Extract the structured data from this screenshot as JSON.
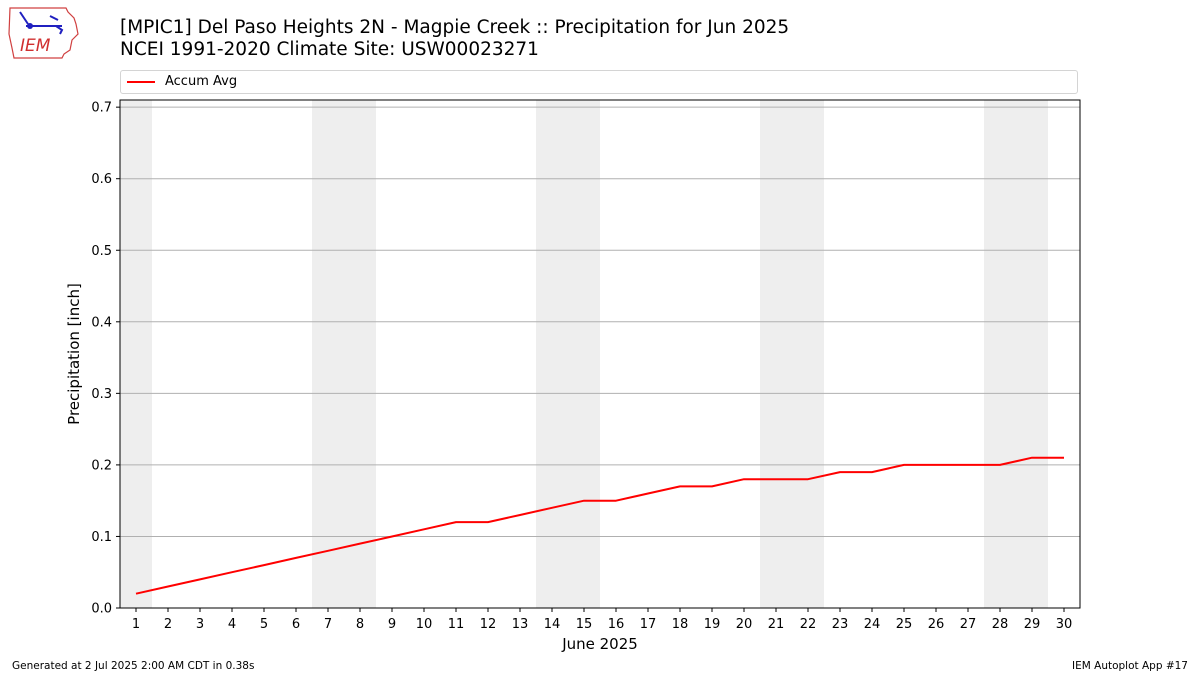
{
  "header": {
    "logo_text": "IEM",
    "title_line1": "[MPIC1] Del Paso Heights 2N - Magpie Creek :: Precipitation for Jun 2025",
    "title_line2": "NCEI 1991-2020 Climate Site: USW00023271"
  },
  "footer": {
    "generated": "Generated at 2 Jul 2025 2:00 AM CDT in 0.38s",
    "app": "IEM Autoplot App #17"
  },
  "chart_data": {
    "type": "line",
    "title": "[MPIC1] Del Paso Heights 2N - Magpie Creek :: Precipitation for Jun 2025",
    "subtitle": "NCEI 1991-2020 Climate Site: USW00023271",
    "xlabel": "June 2025",
    "ylabel": "Precipitation [inch]",
    "xlim": [
      0.5,
      30.5
    ],
    "ylim": [
      0,
      0.71
    ],
    "x": [
      1,
      2,
      3,
      4,
      5,
      6,
      7,
      8,
      9,
      10,
      11,
      12,
      13,
      14,
      15,
      16,
      17,
      18,
      19,
      20,
      21,
      22,
      23,
      24,
      25,
      26,
      27,
      28,
      29,
      30
    ],
    "x_ticks": [
      1,
      2,
      3,
      4,
      5,
      6,
      7,
      8,
      9,
      10,
      11,
      12,
      13,
      14,
      15,
      16,
      17,
      18,
      19,
      20,
      21,
      22,
      23,
      24,
      25,
      26,
      27,
      28,
      29,
      30
    ],
    "y_ticks": [
      0.0,
      0.1,
      0.2,
      0.3,
      0.4,
      0.5,
      0.6,
      0.7
    ],
    "y_tick_labels": [
      "0.0",
      "0.1",
      "0.2",
      "0.3",
      "0.4",
      "0.5",
      "0.6",
      "0.7"
    ],
    "grid": "horizontal",
    "legend": "top",
    "weekend_bands": [
      [
        0.5,
        1.5
      ],
      [
        6.5,
        8.5
      ],
      [
        13.5,
        15.5
      ],
      [
        20.5,
        22.5
      ],
      [
        27.5,
        29.5
      ]
    ],
    "series": [
      {
        "name": "Accum Avg",
        "color": "#ff0000",
        "values": [
          0.02,
          0.03,
          0.04,
          0.05,
          0.06,
          0.07,
          0.08,
          0.09,
          0.1,
          0.11,
          0.12,
          0.12,
          0.13,
          0.14,
          0.15,
          0.15,
          0.16,
          0.17,
          0.17,
          0.18,
          0.18,
          0.18,
          0.19,
          0.19,
          0.2,
          0.2,
          0.2,
          0.2,
          0.21,
          0.21
        ]
      }
    ],
    "colors": {
      "band": "#eeeeee",
      "grid": "#b0b0b0",
      "line": "#ff0000"
    }
  }
}
